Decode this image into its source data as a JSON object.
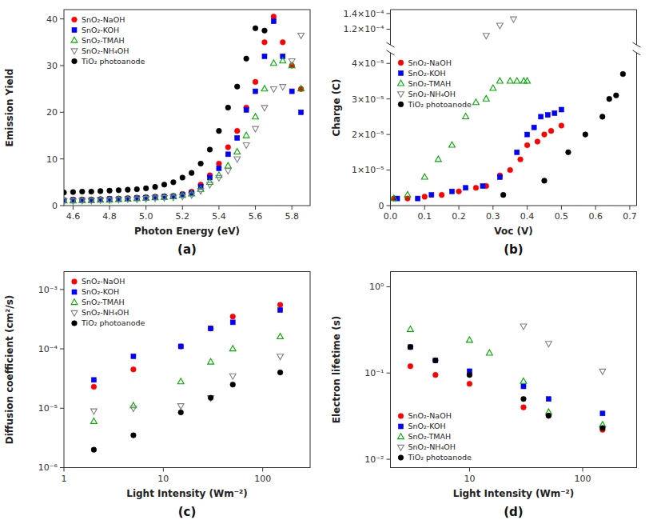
{
  "chart_data": [
    {
      "type": "scatter",
      "title": "(a)",
      "xlabel": "Photon Energy (eV)",
      "ylabel": "Emission Yield",
      "xlim": [
        4.55,
        5.9
      ],
      "ylim": [
        0,
        42
      ],
      "xticks": [
        4.6,
        4.8,
        {
          "value": 5.0,
          "label": "5.0"
        },
        5.2,
        5.4,
        5.6,
        5.8
      ],
      "yticks": [
        0,
        10,
        20,
        30,
        40
      ],
      "grid": false,
      "legend": "upper left",
      "series": [
        {
          "name": "SnO₂-NaOH",
          "color": "#FF0000",
          "marker": "circle",
          "x": [
            4.55,
            4.6,
            4.65,
            4.7,
            4.75,
            4.8,
            4.85,
            4.9,
            4.95,
            5.0,
            5.05,
            5.1,
            5.15,
            5.2,
            5.25,
            5.3,
            5.35,
            5.4,
            5.45,
            5.5,
            5.55,
            5.6,
            5.65,
            5.7,
            5.75,
            5.8,
            5.85
          ],
          "values": [
            1.2,
            1.3,
            1.3,
            1.3,
            1.4,
            1.5,
            1.5,
            1.6,
            1.7,
            1.8,
            1.9,
            2.0,
            2.1,
            2.5,
            3.0,
            4.5,
            6.5,
            9.0,
            12.5,
            16.0,
            21.0,
            26.5,
            35.0,
            40.5,
            35.0,
            30.0,
            25.0
          ]
        },
        {
          "name": "SnO₂-KOH",
          "color": "#0000FF",
          "marker": "square",
          "x": [
            4.55,
            4.6,
            4.65,
            4.7,
            4.75,
            4.8,
            4.85,
            4.9,
            4.95,
            5.0,
            5.05,
            5.1,
            5.15,
            5.2,
            5.25,
            5.3,
            5.35,
            5.4,
            5.45,
            5.5,
            5.55,
            5.6,
            5.65,
            5.7,
            5.75,
            5.8,
            5.85
          ],
          "values": [
            1.1,
            1.2,
            1.2,
            1.2,
            1.3,
            1.4,
            1.4,
            1.5,
            1.6,
            1.7,
            1.8,
            1.9,
            2.0,
            2.3,
            2.7,
            4.0,
            6.0,
            8.0,
            11.0,
            14.5,
            20.5,
            24.5,
            32.0,
            39.5,
            32.0,
            24.5,
            20.0
          ]
        },
        {
          "name": "SnO₂-TMAH",
          "color": "#00AA00",
          "marker": "triangle-up-open",
          "x": [
            4.55,
            4.6,
            4.65,
            4.7,
            4.75,
            4.8,
            4.85,
            4.9,
            4.95,
            5.0,
            5.05,
            5.1,
            5.15,
            5.2,
            5.25,
            5.3,
            5.35,
            5.4,
            5.45,
            5.5,
            5.55,
            5.6,
            5.65,
            5.7,
            5.75,
            5.8,
            5.85
          ],
          "values": [
            1.0,
            1.0,
            1.1,
            1.1,
            1.2,
            1.2,
            1.3,
            1.4,
            1.5,
            1.6,
            1.7,
            1.8,
            1.9,
            2.2,
            2.5,
            3.5,
            5.0,
            6.5,
            8.5,
            11.5,
            15.0,
            19.0,
            25.0,
            30.5,
            31.0,
            30.0,
            25.0
          ]
        },
        {
          "name": "SnO₂-NH₄OH",
          "color": "#808080",
          "marker": "triangle-down-open",
          "x": [
            4.55,
            4.6,
            4.65,
            4.7,
            4.75,
            4.8,
            4.85,
            4.9,
            4.95,
            5.0,
            5.05,
            5.1,
            5.15,
            5.2,
            5.25,
            5.3,
            5.35,
            5.4,
            5.45,
            5.5,
            5.55,
            5.6,
            5.65,
            5.7,
            5.75,
            5.8,
            5.85
          ],
          "values": [
            1.0,
            1.0,
            1.1,
            1.1,
            1.2,
            1.2,
            1.3,
            1.4,
            1.4,
            1.5,
            1.6,
            1.7,
            1.8,
            2.0,
            2.3,
            3.2,
            4.5,
            6.0,
            7.5,
            10.0,
            13.0,
            16.5,
            21.0,
            25.0,
            25.5,
            31.0,
            36.5
          ]
        },
        {
          "name": "TiO₂ photoanode",
          "color": "#000000",
          "marker": "circle",
          "x": [
            4.55,
            4.6,
            4.65,
            4.7,
            4.75,
            4.8,
            4.85,
            4.9,
            4.95,
            5.0,
            5.05,
            5.1,
            5.15,
            5.2,
            5.25,
            5.3,
            5.35,
            5.4,
            5.45,
            5.5,
            5.55,
            5.6,
            5.65
          ],
          "values": [
            2.8,
            2.9,
            3.0,
            3.0,
            3.1,
            3.2,
            3.3,
            3.4,
            3.5,
            3.7,
            4.0,
            4.5,
            5.0,
            6.0,
            7.0,
            9.0,
            12.0,
            16.0,
            21.0,
            25.5,
            31.5,
            38.0,
            37.5
          ]
        }
      ]
    },
    {
      "type": "scatter",
      "title": "(b)",
      "xlabel": "Voc (V)",
      "ylabel": "Charge (C)",
      "xlim": [
        0.0,
        0.72
      ],
      "ylim": [
        0.0,
        4.3e-05
      ],
      "y2lim": [
        0.0001,
        0.000145
      ],
      "xticks": [
        {
          "value": 0.0,
          "label": "0.0"
        },
        0.1,
        0.2,
        0.3,
        0.4,
        0.5,
        0.6,
        0.7
      ],
      "yticks": [
        0,
        {
          "value": 1e-05,
          "label": "1×10⁻⁵"
        },
        {
          "value": 2e-05,
          "label": "2×10⁻⁵"
        },
        {
          "value": 3e-05,
          "label": "3×10⁻⁵"
        },
        {
          "value": 4e-05,
          "label": "4×10⁻⁵"
        }
      ],
      "y2ticks": [
        {
          "value": 0.00012,
          "label": "1.2×10⁻⁴"
        },
        {
          "value": 0.00014,
          "label": "1.4×10⁻⁴"
        }
      ],
      "grid": false,
      "legend": "upper left",
      "series": [
        {
          "name": "SnO₂-NaOH",
          "color": "#FF0000",
          "marker": "circle",
          "x": [
            0.01,
            0.05,
            0.1,
            0.15,
            0.2,
            0.25,
            0.28,
            0.32,
            0.35,
            0.38,
            0.4,
            0.43,
            0.45,
            0.47,
            0.5
          ],
          "values": [
            2e-06,
            2e-06,
            2.5e-06,
            3e-06,
            4e-06,
            5e-06,
            5.5e-06,
            8.5e-06,
            1e-05,
            1.3e-05,
            1.7e-05,
            1.8e-05,
            2e-05,
            2.1e-05,
            2.25e-05
          ]
        },
        {
          "name": "SnO₂-KOH",
          "color": "#0000FF",
          "marker": "square",
          "x": [
            0.02,
            0.08,
            0.12,
            0.18,
            0.22,
            0.27,
            0.32,
            0.37,
            0.4,
            0.42,
            0.44,
            0.46,
            0.48,
            0.5
          ],
          "values": [
            2e-06,
            2e-06,
            3e-06,
            4e-06,
            5e-06,
            5.5e-06,
            8e-06,
            1.5e-05,
            2e-05,
            2.2e-05,
            2.5e-05,
            2.55e-05,
            2.6e-05,
            2.7e-05
          ]
        },
        {
          "name": "SnO₂-TMAH",
          "color": "#00AA00",
          "marker": "triangle-up-open",
          "x": [
            0.01,
            0.05,
            0.1,
            0.14,
            0.18,
            0.22,
            0.25,
            0.28,
            0.3,
            0.32,
            0.35,
            0.37,
            0.39,
            0.4
          ],
          "values": [
            2e-06,
            3e-06,
            8e-06,
            1.3e-05,
            1.7e-05,
            2.5e-05,
            2.9e-05,
            3e-05,
            3.3e-05,
            3.5e-05,
            3.5e-05,
            3.5e-05,
            3.5e-05,
            3.5e-05
          ]
        },
        {
          "name": "SnO₂-NH₄OH",
          "color": "#808080",
          "marker": "triangle-down-open",
          "axis": "y2",
          "x": [
            0.28,
            0.32,
            0.36
          ],
          "values": [
            0.000112,
            0.000125,
            0.000133
          ]
        },
        {
          "name": "TiO₂ photoanode",
          "color": "#000000",
          "marker": "circle",
          "x": [
            0.33,
            0.45,
            0.52,
            0.57,
            0.62,
            0.64,
            0.66,
            0.68
          ],
          "values": [
            3e-06,
            7e-06,
            1.5e-05,
            2e-05,
            2.5e-05,
            3e-05,
            3.1e-05,
            3.7e-05
          ]
        }
      ]
    },
    {
      "type": "scatter",
      "title": "(c)",
      "xlabel": "Light Intensity (Wm⁻²)",
      "ylabel": "Diffusion coefficient (cm²/s)",
      "log": true,
      "xlim": [
        1.0,
        300
      ],
      "ylim": [
        1e-06,
        0.002
      ],
      "xticks": [
        1,
        10,
        100
      ],
      "yticks": [
        {
          "value": 1e-06,
          "label": "10⁻⁶"
        },
        {
          "value": 1e-05,
          "label": "10⁻⁵"
        },
        {
          "value": 0.0001,
          "label": "10⁻⁴"
        },
        {
          "value": 0.001,
          "label": "10⁻³"
        }
      ],
      "grid": false,
      "legend": "upper left",
      "series": [
        {
          "name": "SnO₂-NaOH",
          "color": "#FF0000",
          "marker": "circle",
          "x": [
            2,
            5,
            15,
            30,
            50,
            150
          ],
          "values": [
            2.3e-05,
            4.5e-05,
            0.00011,
            0.00022,
            0.00035,
            0.00055
          ]
        },
        {
          "name": "SnO₂-KOH",
          "color": "#0000FF",
          "marker": "square",
          "x": [
            2,
            5,
            15,
            30,
            50,
            150
          ],
          "values": [
            3e-05,
            7.5e-05,
            0.00011,
            0.00022,
            0.00028,
            0.00045
          ]
        },
        {
          "name": "SnO₂-TMAH",
          "color": "#00AA00",
          "marker": "triangle-up-open",
          "x": [
            2,
            5,
            15,
            30,
            50,
            150
          ],
          "values": [
            6e-06,
            1.1e-05,
            2.8e-05,
            6e-05,
            0.0001,
            0.00016
          ]
        },
        {
          "name": "SnO₂-NH₄OH",
          "color": "#808080",
          "marker": "triangle-down-open",
          "x": [
            2,
            5,
            15,
            30,
            50,
            150
          ],
          "values": [
            9e-06,
            1e-05,
            1.1e-05,
            1.5e-05,
            3.5e-05,
            7.5e-05
          ]
        },
        {
          "name": "TiO₂ photoanode",
          "color": "#000000",
          "marker": "circle",
          "x": [
            2,
            5,
            15,
            30,
            50,
            150
          ],
          "values": [
            2e-06,
            3.5e-06,
            8.5e-06,
            1.5e-05,
            2.5e-05,
            4e-05
          ]
        }
      ]
    },
    {
      "type": "scatter",
      "title": "(d)",
      "xlabel": "Light Intensity (Wm⁻²)",
      "ylabel": "Electron lifetime (s)",
      "log": true,
      "xlim": [
        2,
        300
      ],
      "ylim": [
        0.008,
        1.5
      ],
      "xticks": [
        10,
        100
      ],
      "yticks": [
        {
          "value": 0.01,
          "label": "10⁻²"
        },
        {
          "value": 0.1,
          "label": "10⁻¹"
        },
        {
          "value": 1,
          "label": "10⁰"
        }
      ],
      "grid": false,
      "legend": "lower left",
      "series": [
        {
          "name": "SnO₂-NaOH",
          "color": "#FF0000",
          "marker": "circle",
          "x": [
            3,
            5,
            10,
            30,
            50,
            150
          ],
          "values": [
            0.12,
            0.095,
            0.075,
            0.04,
            0.032,
            0.022
          ]
        },
        {
          "name": "SnO₂-KOH",
          "color": "#0000FF",
          "marker": "square",
          "x": [
            3,
            5,
            10,
            30,
            50,
            150
          ],
          "values": [
            0.2,
            0.14,
            0.105,
            0.07,
            0.05,
            0.034
          ]
        },
        {
          "name": "SnO₂-TMAH",
          "color": "#00AA00",
          "marker": "triangle-up-open",
          "x": [
            3,
            10,
            15,
            30,
            50,
            150
          ],
          "values": [
            0.32,
            0.24,
            0.17,
            0.08,
            0.035,
            0.025
          ]
        },
        {
          "name": "SnO₂-NH₄OH",
          "color": "#808080",
          "marker": "triangle-down-open",
          "x": [
            30,
            50,
            150
          ],
          "values": [
            0.35,
            0.22,
            0.105
          ]
        },
        {
          "name": "TiO₂ photoanode",
          "color": "#000000",
          "marker": "circle",
          "x": [
            3,
            5,
            10,
            30,
            50,
            150
          ],
          "values": [
            0.2,
            0.14,
            0.095,
            0.05,
            0.032,
            0.023
          ]
        }
      ]
    }
  ]
}
